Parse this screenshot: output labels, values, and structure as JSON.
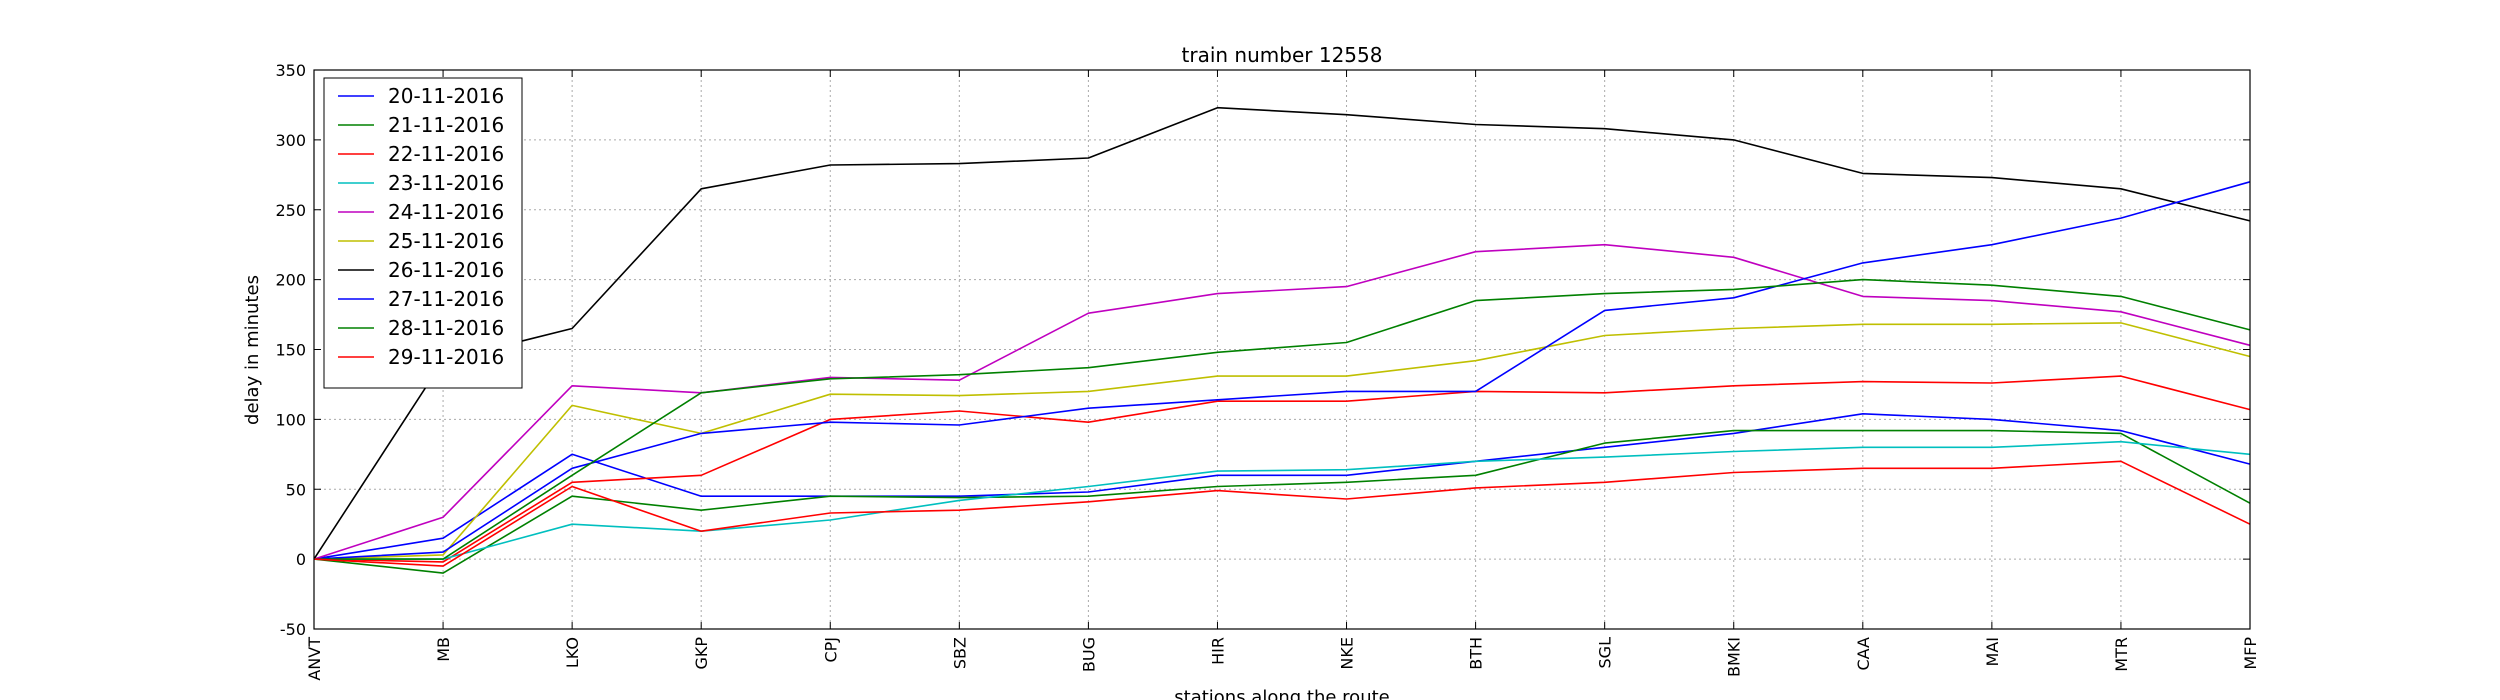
{
  "chart_data": {
    "type": "line",
    "title": "train number 12558",
    "xlabel": "stations along the route",
    "ylabel": "delay in minutes",
    "categories": [
      "ANVT",
      "MB",
      "LKO",
      "GKP",
      "CPJ",
      "SBZ",
      "BUG",
      "HIR",
      "NKE",
      "BTH",
      "SGL",
      "BMKI",
      "CAA",
      "MAI",
      "MTR",
      "MFP"
    ],
    "ylim": [
      -50,
      350
    ],
    "yticks": [
      -50,
      0,
      50,
      100,
      150,
      200,
      250,
      300,
      350
    ],
    "grid": true,
    "legend_position": "top-left",
    "series": [
      {
        "name": "20-11-2016",
        "color": "#0000ff",
        "values": [
          0,
          15,
          75,
          45,
          45,
          45,
          48,
          60,
          60,
          70,
          80,
          90,
          104,
          100,
          92,
          68
        ]
      },
      {
        "name": "21-11-2016",
        "color": "#008000",
        "values": [
          0,
          -10,
          45,
          35,
          45,
          44,
          45,
          52,
          55,
          60,
          83,
          92,
          92,
          92,
          90,
          40
        ]
      },
      {
        "name": "22-11-2016",
        "color": "#ff0000",
        "values": [
          0,
          -2,
          55,
          60,
          100,
          106,
          98,
          113,
          113,
          120,
          119,
          124,
          127,
          126,
          131,
          107
        ]
      },
      {
        "name": "23-11-2016",
        "color": "#00bfbf",
        "values": [
          0,
          0,
          25,
          20,
          28,
          42,
          52,
          63,
          64,
          70,
          73,
          77,
          80,
          80,
          84,
          75
        ]
      },
      {
        "name": "24-11-2016",
        "color": "#bf00bf",
        "values": [
          0,
          30,
          124,
          119,
          130,
          128,
          176,
          190,
          195,
          220,
          225,
          216,
          188,
          185,
          177,
          153
        ]
      },
      {
        "name": "25-11-2016",
        "color": "#bfbf00",
        "values": [
          0,
          3,
          110,
          90,
          118,
          117,
          120,
          131,
          131,
          142,
          160,
          165,
          168,
          168,
          169,
          145
        ]
      },
      {
        "name": "26-11-2016",
        "color": "#000000",
        "values": [
          0,
          142,
          165,
          265,
          282,
          283,
          287,
          323,
          318,
          311,
          308,
          300,
          276,
          273,
          265,
          242
        ]
      },
      {
        "name": "27-11-2016",
        "color": "#0000ff",
        "values": [
          0,
          5,
          65,
          90,
          98,
          96,
          108,
          114,
          120,
          120,
          178,
          187,
          212,
          225,
          244,
          270
        ]
      },
      {
        "name": "28-11-2016",
        "color": "#008000",
        "values": [
          0,
          0,
          60,
          119,
          129,
          132,
          137,
          148,
          155,
          185,
          190,
          193,
          200,
          196,
          188,
          164
        ]
      },
      {
        "name": "29-11-2016",
        "color": "#ff0000",
        "values": [
          0,
          -5,
          52,
          20,
          33,
          35,
          41,
          49,
          43,
          51,
          55,
          62,
          65,
          65,
          70,
          25
        ]
      }
    ]
  }
}
